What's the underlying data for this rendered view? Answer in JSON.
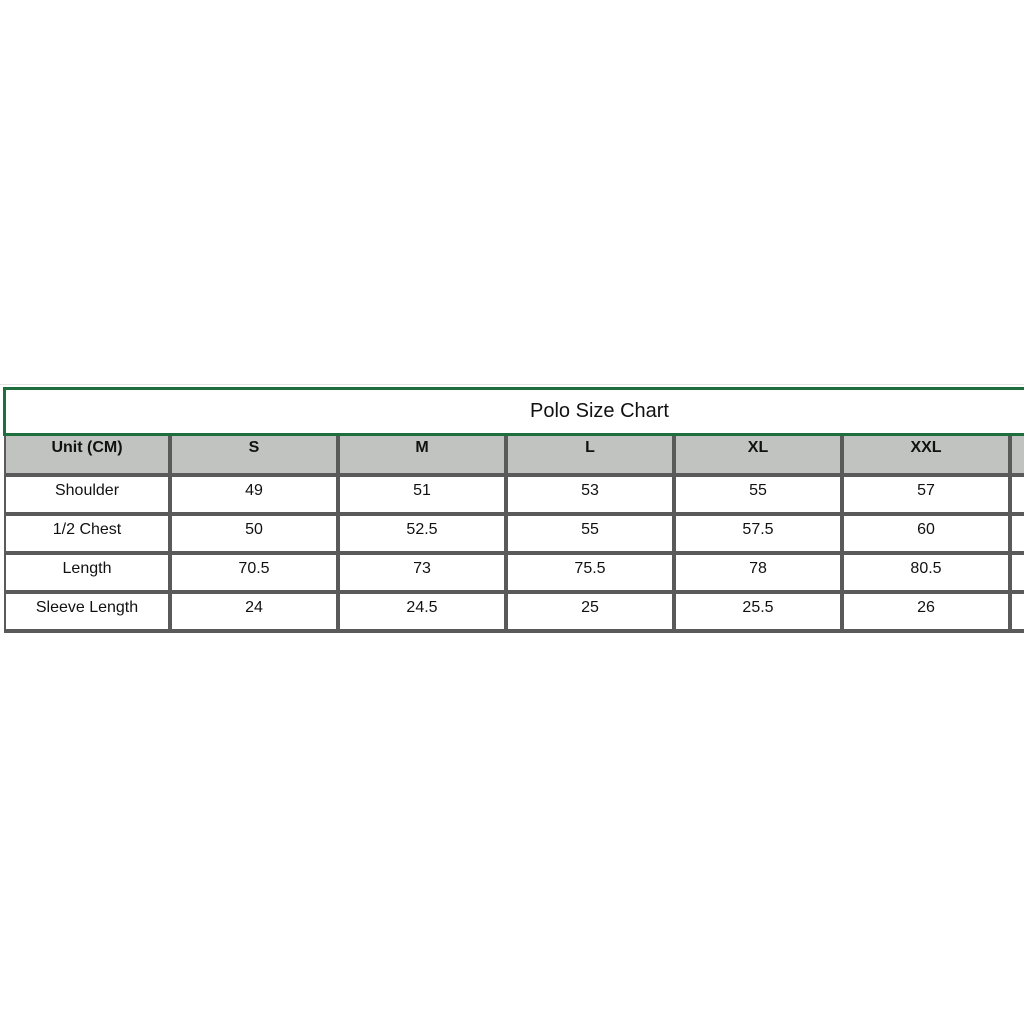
{
  "title": "Polo Size Chart",
  "header": [
    "Unit (CM)",
    "S",
    "M",
    "L",
    "XL",
    "XXL"
  ],
  "rows": [
    [
      "Shoulder",
      "49",
      "51",
      "53",
      "55",
      "57"
    ],
    [
      "1/2 Chest",
      "50",
      "52.5",
      "55",
      "57.5",
      "60"
    ],
    [
      "Length",
      "70.5",
      "73",
      "75.5",
      "78",
      "80.5"
    ],
    [
      "Sleeve Length",
      "24",
      "24.5",
      "25",
      "25.5",
      "26"
    ]
  ],
  "colors": {
    "title_border": "#1e6e3e",
    "header_bg": "#c1c3c1",
    "cell_border": "#5a5a5a"
  }
}
